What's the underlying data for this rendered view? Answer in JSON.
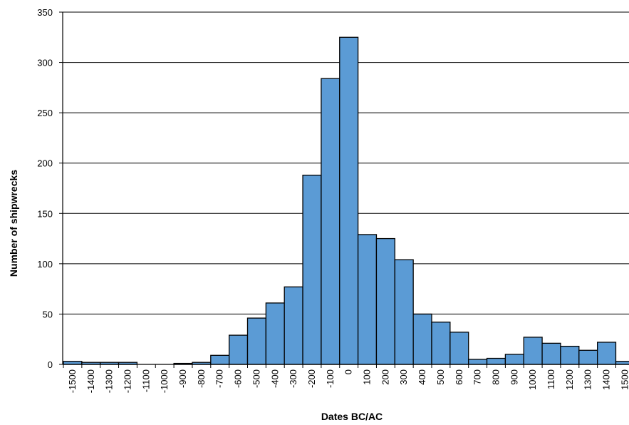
{
  "chart_data": {
    "type": "bar",
    "title": "",
    "xlabel": "Dates BC/AC",
    "ylabel": "Number of shipwrecks",
    "ylim": [
      0,
      350
    ],
    "yticks": [
      "0",
      "50",
      "100",
      "150",
      "200",
      "250",
      "300",
      "350"
    ],
    "grid": "horizontal",
    "legend": "none",
    "bar_color": "#5b9bd5",
    "bar_edge_color": "#000000",
    "categories": [
      "-1500",
      "-1400",
      "-1300",
      "-1200",
      "-1100",
      "-1000",
      "-900",
      "-800",
      "-700",
      "-600",
      "-500",
      "-400",
      "-300",
      "-200",
      "-100",
      "0",
      "100",
      "200",
      "300",
      "400",
      "500",
      "600",
      "700",
      "800",
      "900",
      "1000",
      "1100",
      "1200",
      "1300",
      "1400",
      "1500"
    ],
    "values": [
      3,
      2,
      2,
      2,
      0,
      0,
      1,
      2,
      9,
      29,
      46,
      61,
      77,
      188,
      284,
      325,
      129,
      125,
      104,
      50,
      42,
      32,
      5,
      6,
      10,
      27,
      21,
      18,
      14,
      22,
      3
    ]
  }
}
